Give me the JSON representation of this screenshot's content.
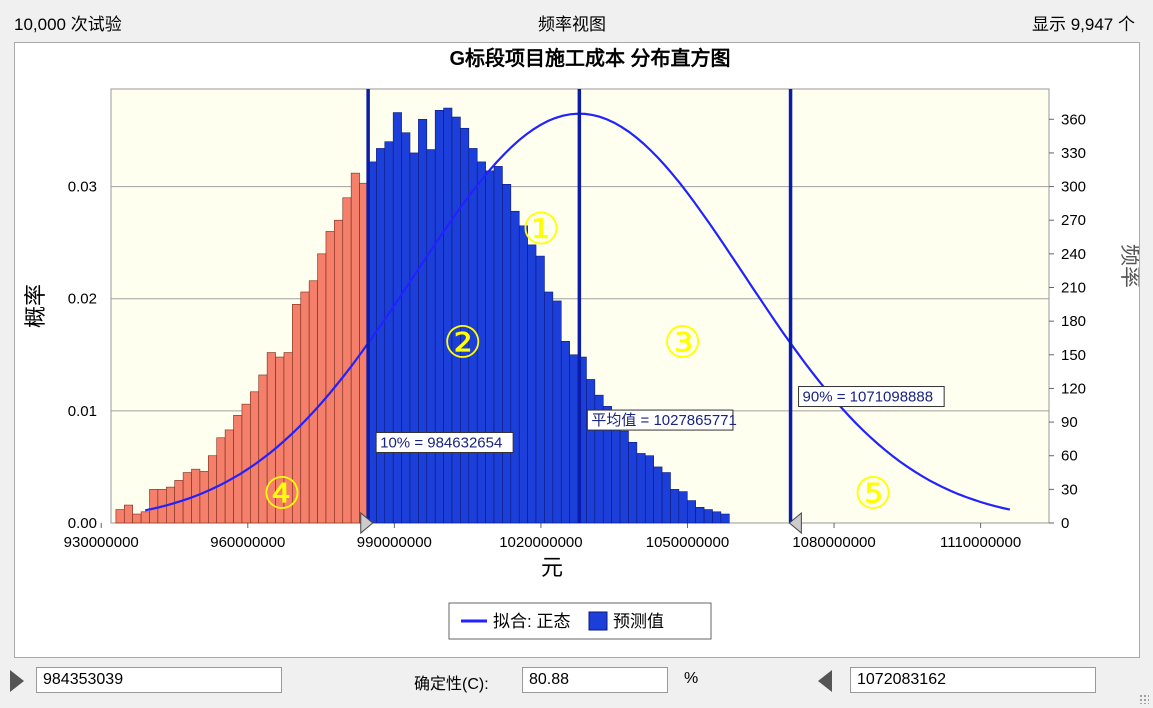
{
  "header": {
    "trials": "10,000 次试验",
    "view": "频率视图",
    "shown": "显示 9,947 个"
  },
  "colors": {
    "center_bar": "#1d3fd9",
    "tail_bar": "#f47f6a",
    "bar_edge": "#0a1a7a",
    "tail_edge": "#7a2a1a",
    "plot_bg": "#fffff0",
    "marker_line": "#0a1ca8",
    "fit_curve": "#2222ff",
    "region_label": "#ffff00"
  },
  "chart_data": {
    "type": "bar",
    "title": "G标段项目施工成本 分布直方图",
    "xlabel": "元",
    "ylabel_left": "概率",
    "ylabel_right": "频率",
    "xlim": [
      932000000,
      1124000000
    ],
    "ylim_left": [
      0,
      0.0387
    ],
    "ylim_right": [
      0,
      387
    ],
    "x_ticks": [
      930000000,
      960000000,
      990000000,
      1020000000,
      1050000000,
      1080000000,
      1110000000
    ],
    "x_tick_labels": [
      "930000000",
      "960000000",
      "990000000",
      "1020000000",
      "1050000000",
      "1080000000",
      "1110000000"
    ],
    "y_left_ticks": [
      0,
      0.01,
      0.02,
      0.03
    ],
    "y_left_tick_labels": [
      "0.00",
      "0.01",
      "0.02",
      "0.03"
    ],
    "y_right_ticks": [
      0,
      30,
      60,
      90,
      120,
      150,
      180,
      210,
      240,
      270,
      300,
      330,
      360
    ],
    "y_right_tick_labels": [
      "0",
      "30",
      "60",
      "90",
      "120",
      "150",
      "180",
      "210",
      "240",
      "270",
      "300",
      "330",
      "360"
    ],
    "grid": true,
    "bin_start": 933000000,
    "bin_width": 1720000,
    "frequencies": [
      12,
      16,
      8,
      10,
      30,
      30,
      32,
      38,
      45,
      48,
      46,
      60,
      76,
      83,
      96,
      106,
      117,
      132,
      152,
      148,
      152,
      195,
      206,
      216,
      240,
      260,
      270,
      290,
      312,
      303,
      322,
      334,
      340,
      366,
      348,
      330,
      360,
      333,
      368,
      370,
      362,
      352,
      334,
      322,
      314,
      318,
      302,
      278,
      265,
      248,
      238,
      206,
      198,
      162,
      150,
      148,
      128,
      114,
      104,
      90,
      82,
      72,
      62,
      60,
      50,
      45,
      30,
      28,
      20,
      14,
      12,
      10,
      8
    ],
    "fit_normal": {
      "mean": 1027865771,
      "sd": 33700000,
      "peak_frequency": 365
    },
    "markers": [
      {
        "x": 984632654,
        "label": "10% = 984632654"
      },
      {
        "x": 1027865771,
        "label": "平均值 = 1027865771"
      },
      {
        "x": 1071098888,
        "label": "90% = 1071098888"
      }
    ],
    "certainty_range": [
      984353039,
      1072083162
    ],
    "region_labels": [
      {
        "text": "①",
        "x": 1020000000,
        "frequency": 263
      },
      {
        "text": "②",
        "x": 1004000000,
        "frequency": 162
      },
      {
        "text": "③",
        "x": 1049000000,
        "frequency": 162
      },
      {
        "text": "④",
        "x": 967000000,
        "frequency": 27
      },
      {
        "text": "⑤",
        "x": 1088000000,
        "frequency": 27
      }
    ],
    "legend": {
      "position": "bottom-center",
      "items": [
        {
          "name": "拟合: 正态",
          "kind": "line"
        },
        {
          "name": "预测值",
          "kind": "bar"
        }
      ]
    }
  },
  "controls": {
    "left_value": "984353039",
    "certainty_label": "确定性(C):",
    "certainty_value": "80.88",
    "percent_sign": "%",
    "right_value": "1072083162"
  }
}
